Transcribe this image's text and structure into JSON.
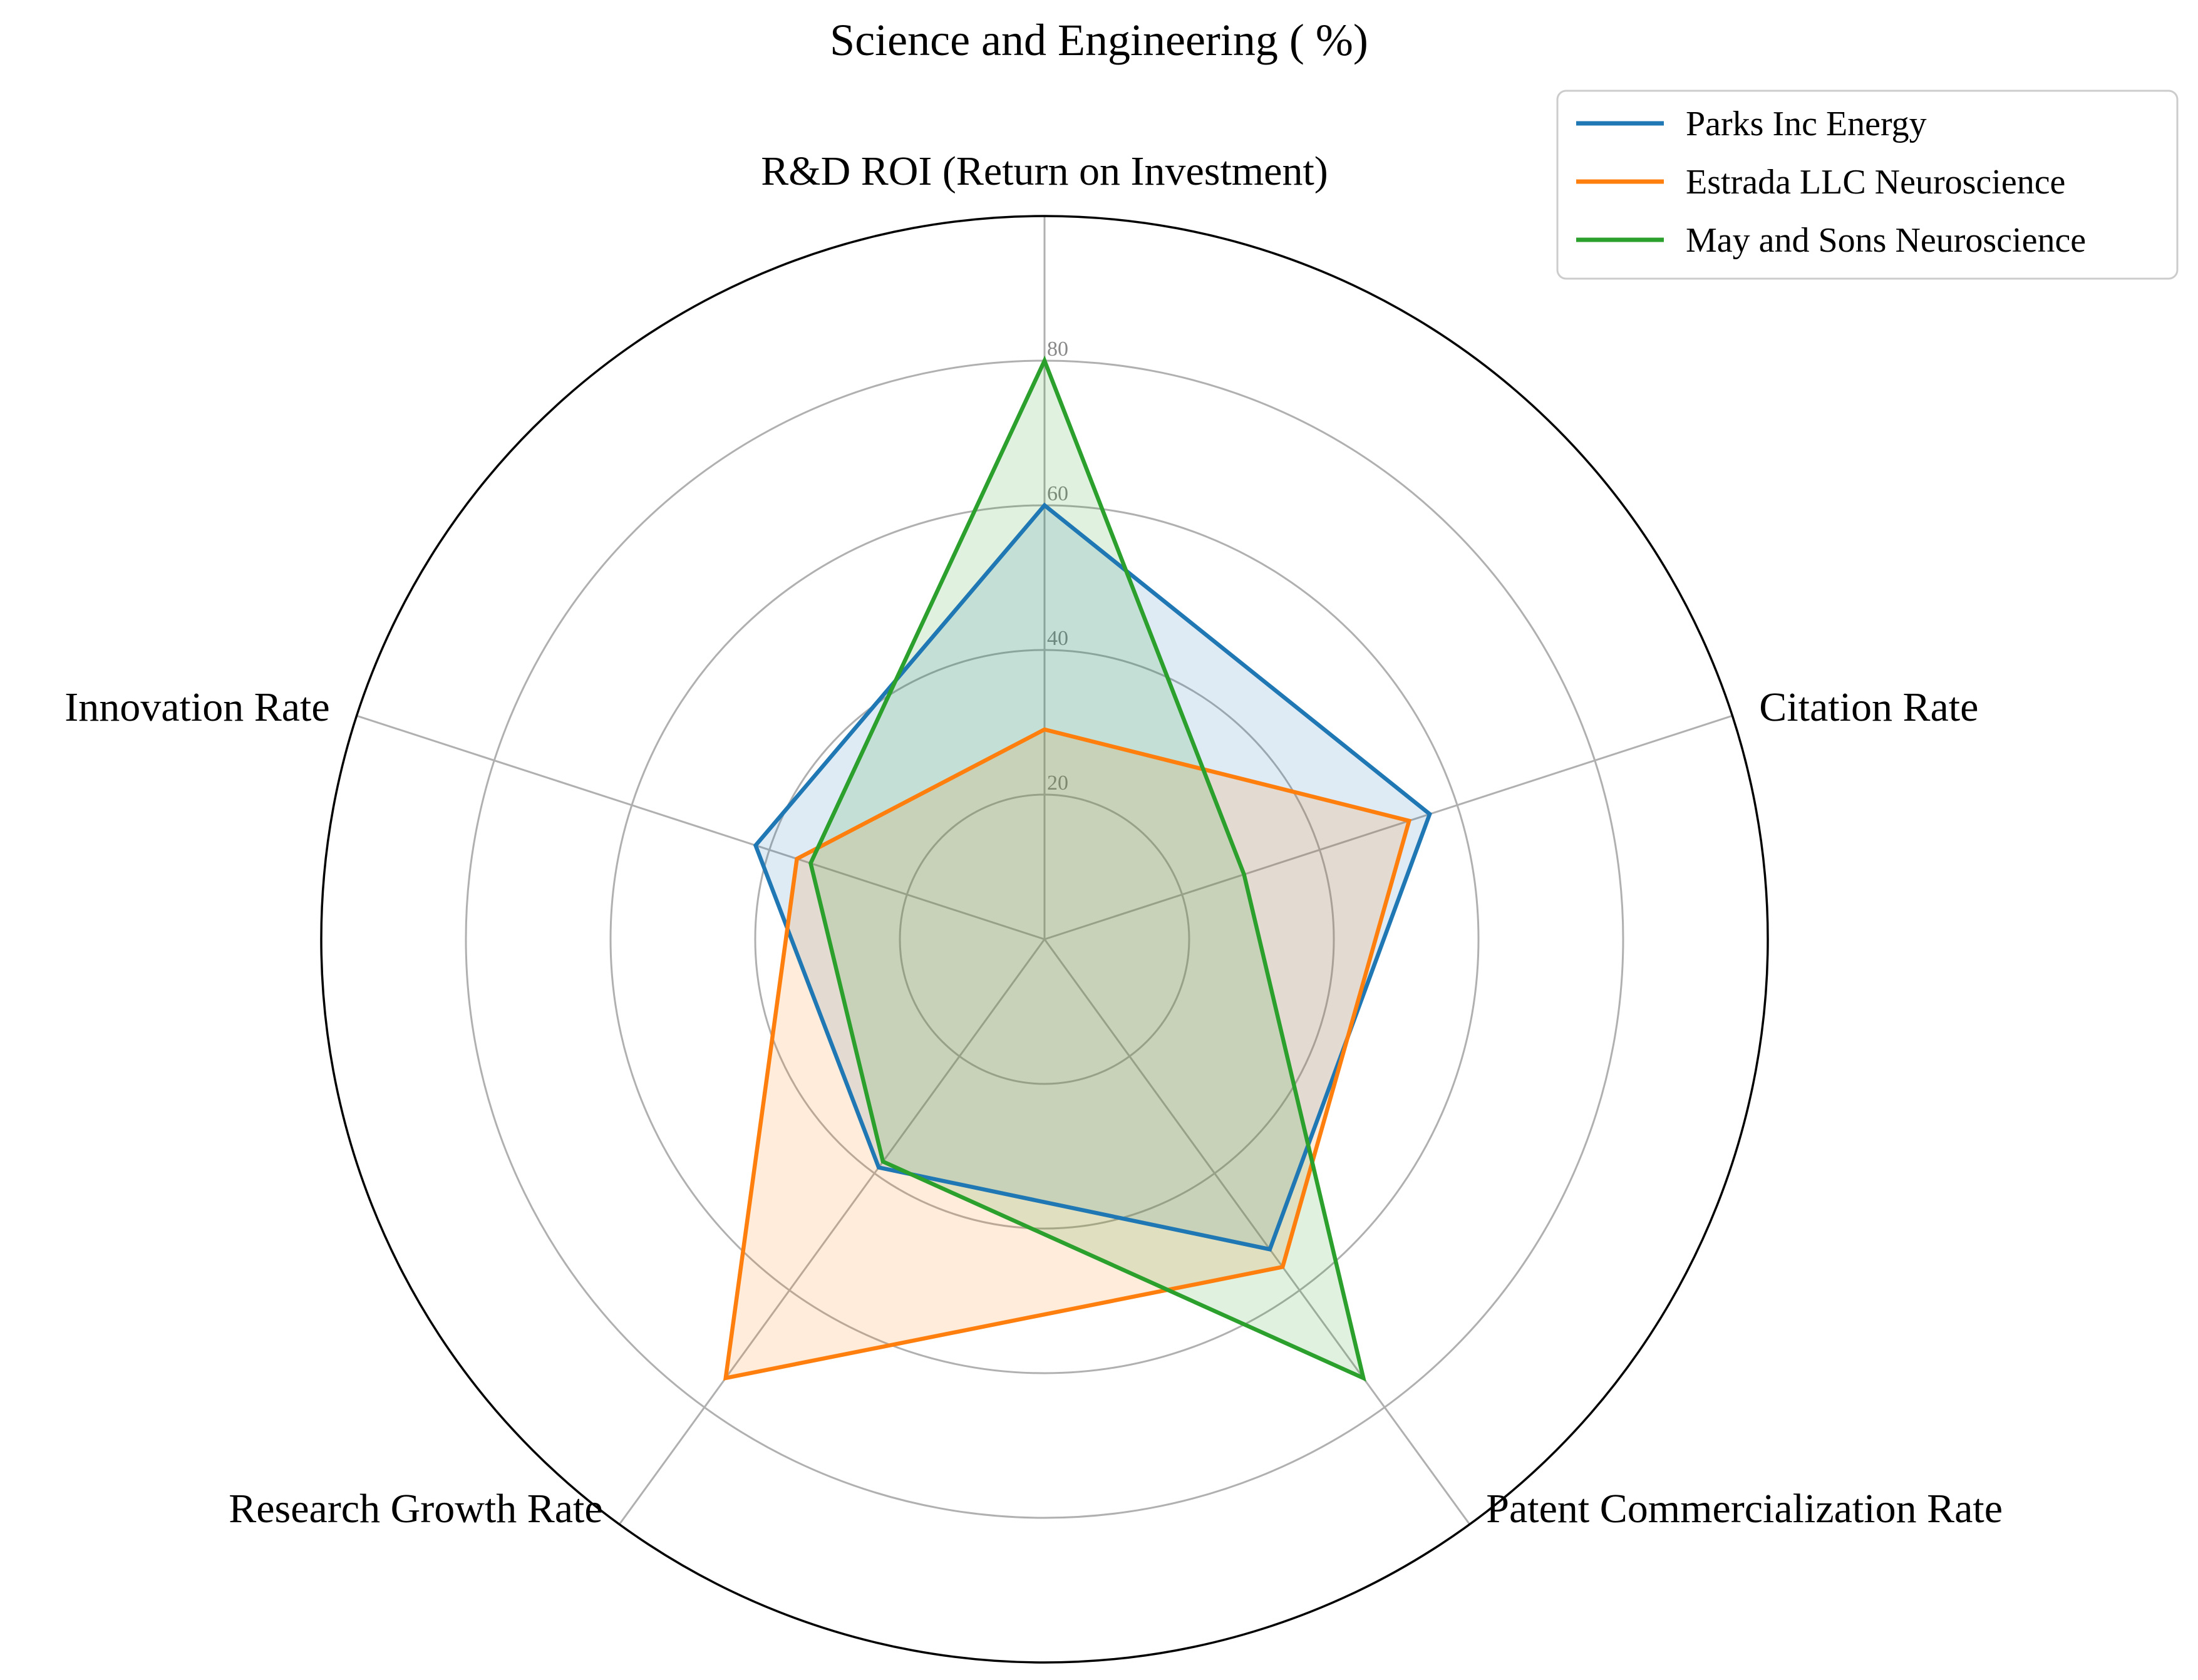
{
  "chart_data": {
    "type": "radar",
    "title": "Science and Engineering ( %)",
    "axes": [
      "R&D ROI (Return on Investment)",
      "Citation Rate",
      "Patent Commercialization Rate",
      "Research Growth Rate",
      "Innovation Rate"
    ],
    "rlim": [
      0,
      100
    ],
    "rticks": [
      20,
      40,
      60,
      80
    ],
    "rtick_labels": [
      "20",
      "40",
      "60",
      "80"
    ],
    "grid": true,
    "legend_position": "top-right",
    "series": [
      {
        "name": "Parks Inc Energy",
        "color": "#1f77b4",
        "values": [
          60,
          56,
          53,
          39,
          42
        ]
      },
      {
        "name": "Estrada LLC Neuroscience",
        "color": "#ff7f0e",
        "values": [
          29,
          53,
          56,
          75,
          36
        ]
      },
      {
        "name": "May and Sons Neuroscience",
        "color": "#2ca02c",
        "values": [
          80,
          29,
          75,
          38,
          34
        ]
      }
    ]
  }
}
